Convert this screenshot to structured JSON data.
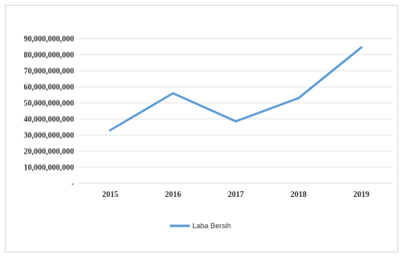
{
  "chart_data": {
    "type": "line",
    "categories": [
      "2015",
      "2016",
      "2017",
      "2018",
      "2019"
    ],
    "series": [
      {
        "name": "Laba Bersih",
        "values": [
          33000000000,
          56000000000,
          38500000000,
          53000000000,
          84500000000
        ],
        "color": "#5B9BD5"
      }
    ],
    "y_ticks": [
      {
        "value": 0,
        "label": "-"
      },
      {
        "value": 10000000000,
        "label": "10,000,000,000"
      },
      {
        "value": 20000000000,
        "label": "20,000,000,000"
      },
      {
        "value": 30000000000,
        "label": "30,000,000,000"
      },
      {
        "value": 40000000000,
        "label": "40,000,000,000"
      },
      {
        "value": 50000000000,
        "label": "50,000,000,000"
      },
      {
        "value": 60000000000,
        "label": "60,000,000,000"
      },
      {
        "value": 70000000000,
        "label": "70,000,000,000"
      },
      {
        "value": 80000000000,
        "label": "80,000,000,000"
      },
      {
        "value": 90000000000,
        "label": "90,000,000,000"
      }
    ],
    "ylim": [
      0,
      90000000000
    ],
    "grid": true,
    "legend_position": "bottom-center",
    "title": "",
    "xlabel": "",
    "ylabel": ""
  }
}
